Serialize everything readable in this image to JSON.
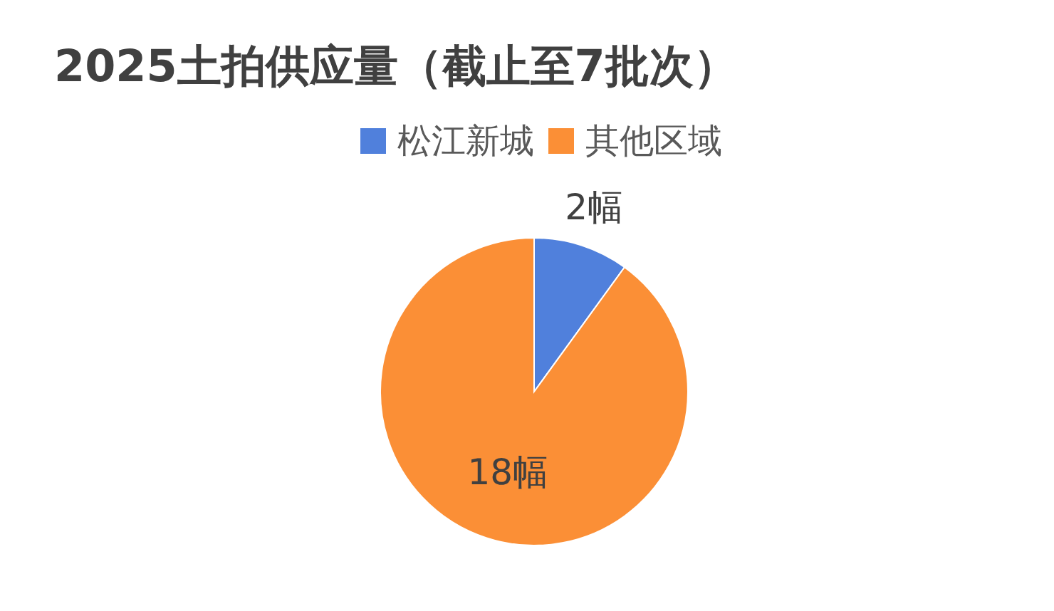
{
  "chart_data": {
    "type": "pie",
    "title": "2025土拍供应量（截止至7批次）",
    "categories": [
      "松江新城",
      "其他区域"
    ],
    "values": [
      2,
      18
    ],
    "colors": [
      "#5080dc",
      "#fb8f36"
    ],
    "value_labels": [
      "2幅",
      "18幅"
    ],
    "legend": "top"
  }
}
